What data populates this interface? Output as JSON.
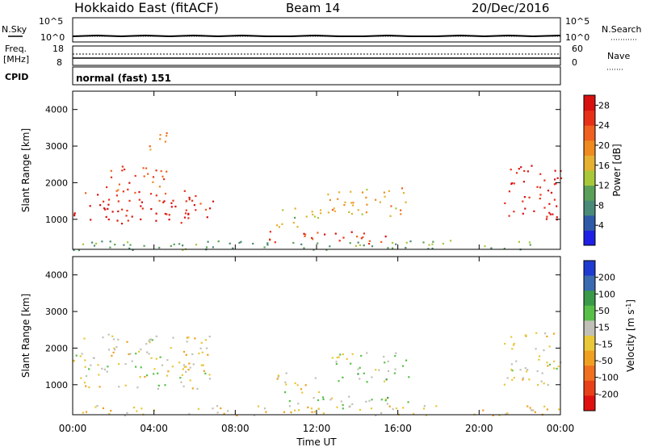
{
  "header": {
    "station": "Hokkaido East (fitACF)",
    "beam": "Beam 14",
    "date": "20/Dec/2016"
  },
  "top_panels": {
    "nsky_label": "N.Sky",
    "nsearch_label": "N.Search",
    "noise_ticks": [
      "10^5",
      "10^0"
    ],
    "freq_label_1": "Freq.",
    "freq_label_2": "[MHz]",
    "freq_ticks": [
      "18",
      "8"
    ],
    "nave_label": "Nave",
    "nave_ticks": [
      "60",
      "0"
    ],
    "cpid_label": "CPID",
    "cpid_value": "normal (fast) 151"
  },
  "colors": {
    "power_scale": [
      "#1f1fe6",
      "#2f5aa8",
      "#4a8a78",
      "#5aa05a",
      "#a8c83a",
      "#e6b030",
      "#ee8a20",
      "#f06020",
      "#e83018",
      "#d81010"
    ],
    "velocity_scale": [
      "#1f3ad0",
      "#3a6ab0",
      "#3a9a4a",
      "#58c048",
      "#c0c0b8",
      "#e8c838",
      "#f0a020",
      "#f07020",
      "#e84018",
      "#e01010"
    ]
  },
  "chart_data": [
    {
      "type": "heatmap",
      "title": "",
      "xlabel": "Time UT",
      "ylabel": "Slant Range [km]",
      "x_ticks": [
        "00:00",
        "04:00",
        "08:00",
        "12:00",
        "16:00",
        "20:00",
        "00:00"
      ],
      "y_ticks": [
        1000,
        2000,
        3000,
        4000
      ],
      "ylim": [
        180,
        4500
      ],
      "colorbar": {
        "label": "Power [dB]",
        "ticks": [
          4,
          8,
          12,
          16,
          20,
          24,
          28
        ],
        "range": [
          0,
          30
        ]
      },
      "regions": [
        {
          "x": [
            0.0,
            6.9
          ],
          "y": [
            900,
            1800
          ],
          "value": 27
        },
        {
          "x": [
            1.5,
            4.6
          ],
          "y": [
            1700,
            2500
          ],
          "value": 24
        },
        {
          "x": [
            3.5,
            4.6
          ],
          "y": [
            2900,
            3500
          ],
          "value": 20
        },
        {
          "x": [
            10.0,
            12.2
          ],
          "y": [
            800,
            1400
          ],
          "value": 14
        },
        {
          "x": [
            12.5,
            16.5
          ],
          "y": [
            1100,
            1900
          ],
          "value": 18
        },
        {
          "x": [
            9.5,
            15.5
          ],
          "y": [
            350,
            700
          ],
          "value": 26
        },
        {
          "x": [
            21.2,
            24.0
          ],
          "y": [
            1000,
            2500
          ],
          "value": 27
        },
        {
          "x": [
            0.0,
            24.0
          ],
          "y": [
            180,
            450
          ],
          "value": 10
        }
      ]
    },
    {
      "type": "heatmap",
      "title": "",
      "xlabel": "Time UT",
      "ylabel": "Slant Range [km]",
      "x_ticks": [
        "00:00",
        "04:00",
        "08:00",
        "12:00",
        "16:00",
        "20:00",
        "00:00"
      ],
      "y_ticks": [
        1000,
        2000,
        3000,
        4000
      ],
      "ylim": [
        180,
        4500
      ],
      "colorbar": {
        "label": "Velocity [m s^-1]",
        "ticks": [
          200,
          100,
          50,
          15,
          -15,
          -50,
          -100,
          -200
        ],
        "range": [
          -250,
          250
        ]
      },
      "regions": [
        {
          "x": [
            0.0,
            6.9
          ],
          "y": [
            900,
            2400
          ],
          "value": 0
        },
        {
          "x": [
            10.0,
            12.2
          ],
          "y": [
            800,
            1400
          ],
          "value": 0
        },
        {
          "x": [
            12.5,
            16.5
          ],
          "y": [
            1100,
            1900
          ],
          "value": 40
        },
        {
          "x": [
            10.5,
            16.5
          ],
          "y": [
            350,
            700
          ],
          "value": 40
        },
        {
          "x": [
            21.2,
            24.0
          ],
          "y": [
            1000,
            2500
          ],
          "value": 0
        },
        {
          "x": [
            0.0,
            24.0
          ],
          "y": [
            180,
            450
          ],
          "value": -20
        }
      ]
    }
  ]
}
